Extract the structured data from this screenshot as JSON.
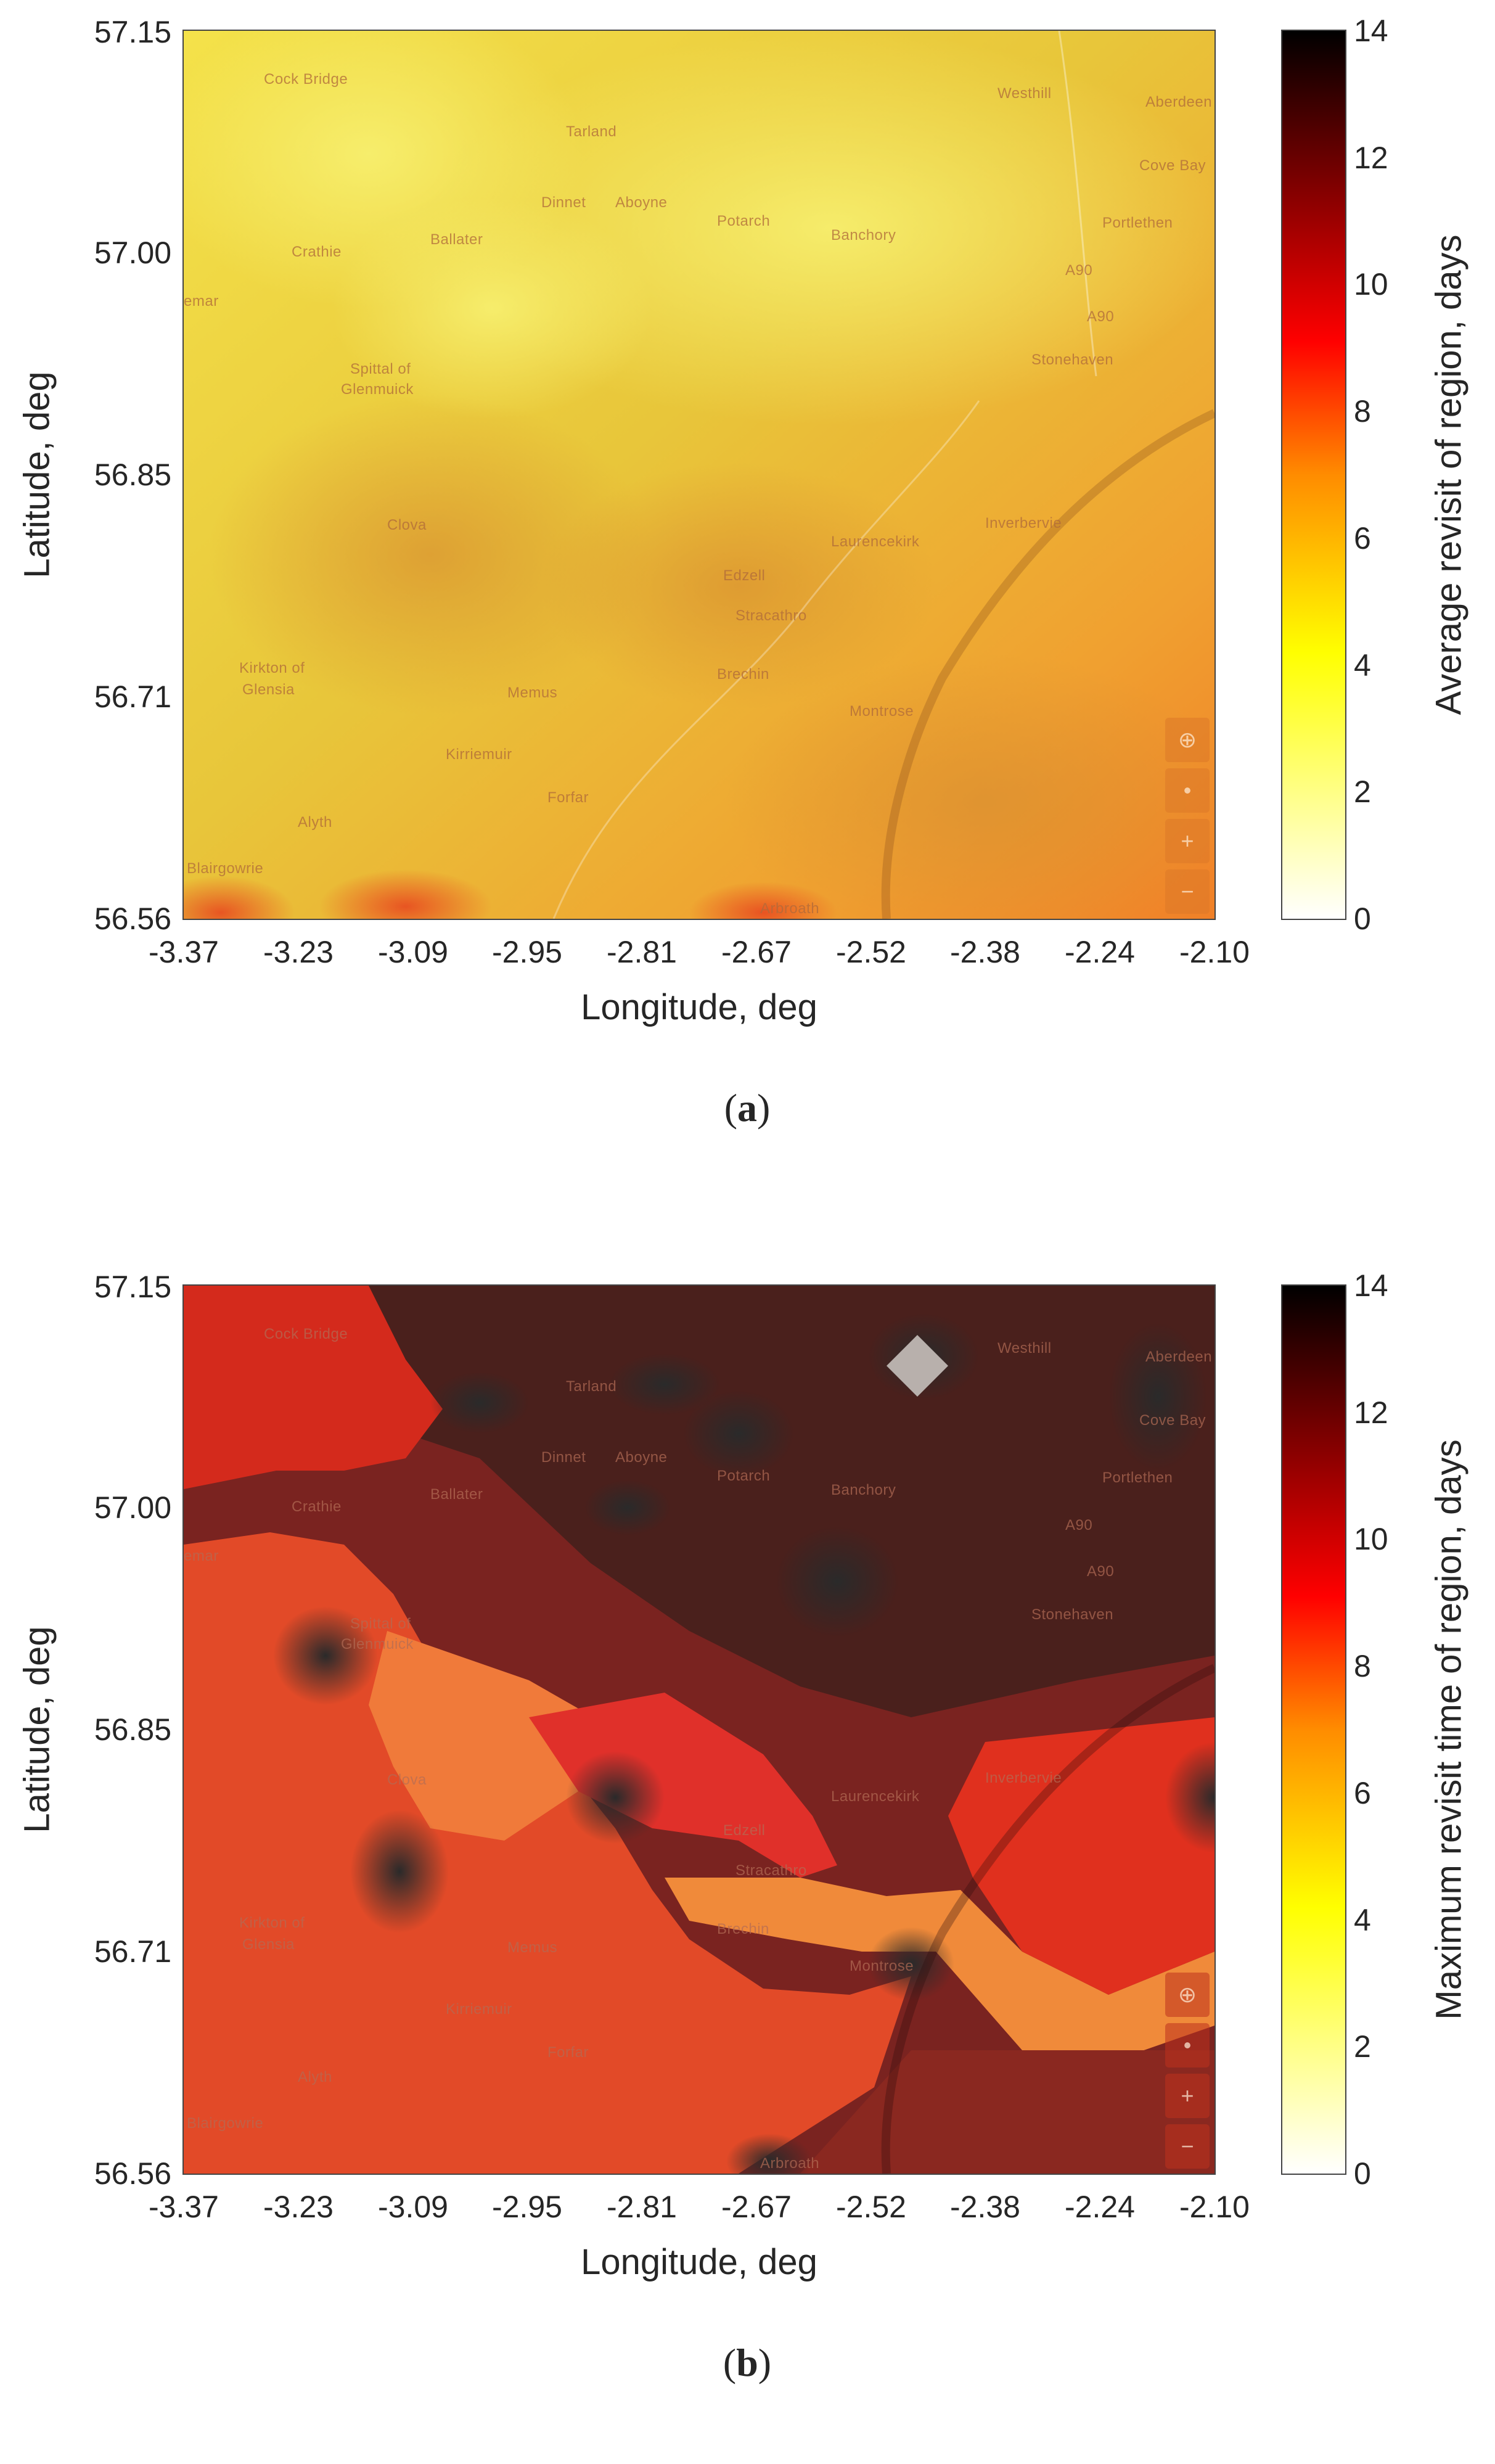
{
  "panels": [
    {
      "id": "a",
      "caption_open": "(",
      "caption_letter": "a",
      "caption_close": ")",
      "colorbar_label": "Average revisit of region, days"
    },
    {
      "id": "b",
      "caption_open": "(",
      "caption_letter": "b",
      "caption_close": ")",
      "colorbar_label": "Maximum revisit time of region, days"
    }
  ],
  "axes": {
    "xlabel": "Longitude, deg",
    "ylabel": "Latitude, deg",
    "x_ticks": [
      "-3.37",
      "-3.23",
      "-3.09",
      "-2.95",
      "-2.81",
      "-2.67",
      "-2.52",
      "-2.38",
      "-2.24",
      "-2.10"
    ],
    "y_ticks": [
      "57.15",
      "57.00",
      "56.85",
      "56.71",
      "56.56"
    ],
    "colorbar_ticks": [
      "14",
      "12",
      "10",
      "8",
      "6",
      "4",
      "2",
      "0"
    ],
    "xlim": [
      -3.37,
      -2.1
    ],
    "ylim": [
      56.56,
      57.15
    ],
    "clim": [
      0,
      14
    ]
  },
  "colormap": {
    "name": "hot (reversed)",
    "stops": [
      "#ffffff",
      "#ffff00",
      "#ff9900",
      "#ff0000",
      "#800000",
      "#000000"
    ]
  },
  "places": [
    "Cock Bridge",
    "Tarland",
    "Westhill",
    "Aberdeen",
    "Cove Bay",
    "Dinnet",
    "Aboyne",
    "Potarch",
    "Banchory",
    "Portlethen",
    "Crathie",
    "Ballater",
    "Braemar",
    "Spittal of Glenmuick",
    "Stonehaven",
    "Clova",
    "Laurencekirk",
    "Inverbervie",
    "Edzell",
    "Stracathro",
    "Kirkton of Glenisla",
    "Memus",
    "Brechin",
    "Montrose",
    "Kirriemuir",
    "Forfar",
    "Alyth",
    "Blairgowrie",
    "Arbroath"
  ],
  "place_fragments": {
    "braemar": "emar",
    "spittal_1": "Spittal of",
    "spittal_2": "Glenmuick",
    "kirkton_1": "Kirkton of",
    "kirkton_2": "Glensia",
    "road_a": "A90",
    "road_b": "A90"
  },
  "map_controls": {
    "locate_icon": "crosshair-icon",
    "center_icon": "dot-icon",
    "zoom_in": "+",
    "zoom_out": "−"
  }
}
